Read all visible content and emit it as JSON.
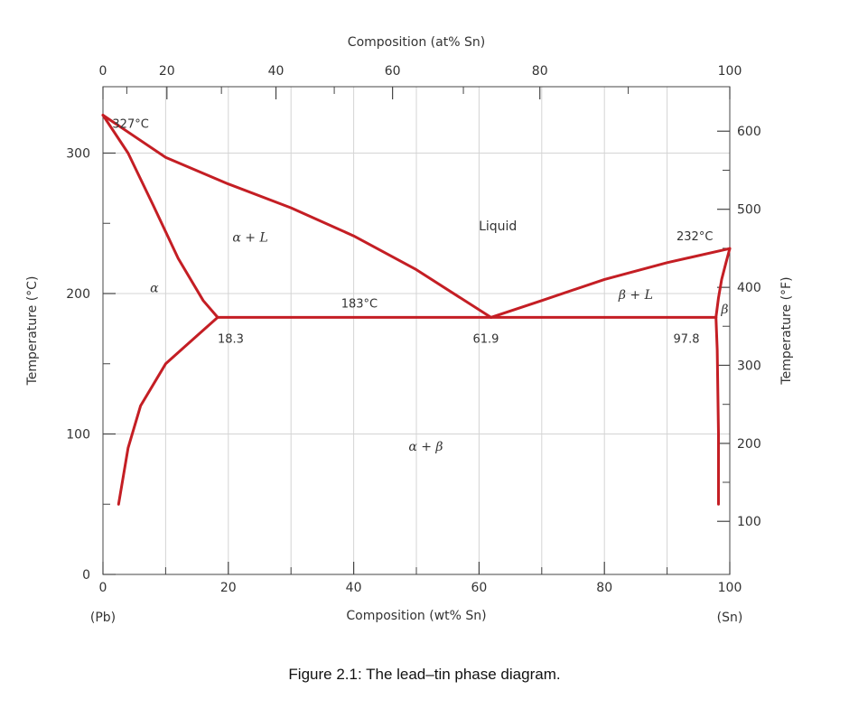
{
  "caption": "Figure 2.1: The lead–tin phase diagram.",
  "chart_data": {
    "type": "line",
    "title": "",
    "xlabel": "Composition (wt% Sn)",
    "x2label": "Composition (at% Sn)",
    "ylabel": "Temperature (°C)",
    "y2label": "Temperature (°F)",
    "xlim": [
      0,
      100
    ],
    "ylim": [
      0,
      327
    ],
    "xticks": [
      0,
      20,
      40,
      60,
      80,
      100
    ],
    "yticks": [
      0,
      100,
      200,
      300
    ],
    "x2ticks": [
      {
        "at": 0,
        "wt": 0.0
      },
      {
        "at": 20,
        "wt": 10.2
      },
      {
        "at": 40,
        "wt": 27.6
      },
      {
        "at": 60,
        "wt": 46.2
      },
      {
        "at": 80,
        "wt": 69.7
      },
      {
        "at": 100,
        "wt": 100.0
      }
    ],
    "y2ticks": [
      {
        "f": 100,
        "c": 37.8
      },
      {
        "f": 200,
        "c": 93.3
      },
      {
        "f": 300,
        "c": 148.9
      },
      {
        "f": 400,
        "c": 204.4
      },
      {
        "f": 500,
        "c": 260.0
      },
      {
        "f": 600,
        "c": 315.6
      }
    ],
    "x_end_labels": {
      "left": "(Pb)",
      "right": "(Sn)"
    },
    "grid": true,
    "series": [
      {
        "x": [
          0,
          4,
          8,
          12,
          16,
          18.3
        ],
        "y": [
          327,
          300,
          263,
          225,
          195,
          183
        ]
      },
      {
        "x": [
          0,
          10,
          20,
          30,
          40,
          50,
          61.9
        ],
        "y": [
          327,
          297,
          278,
          261,
          241,
          217,
          183
        ]
      },
      {
        "x": [
          61.9,
          70,
          80,
          90,
          100
        ],
        "y": [
          183,
          195,
          210,
          222,
          232
        ]
      },
      {
        "x": [
          100,
          99.4,
          98.7,
          98.2,
          97.8
        ],
        "y": [
          232,
          222,
          210,
          197,
          183
        ]
      },
      {
        "x": [
          18.3,
          15,
          10,
          6,
          4,
          2.5
        ],
        "y": [
          183,
          170,
          150,
          120,
          90,
          50
        ]
      },
      {
        "x": [
          97.8,
          98.0,
          98.1,
          98.2,
          98.2,
          98.2
        ],
        "y": [
          183,
          160,
          130,
          100,
          70,
          50
        ]
      },
      {
        "x": [
          18.3,
          97.8
        ],
        "y": [
          183,
          183
        ]
      }
    ],
    "series_color": "#c41e24",
    "annotations": [
      {
        "text": "327°C",
        "x": 1.5,
        "y": 318
      },
      {
        "text": "232°C",
        "x": 91.5,
        "y": 238
      },
      {
        "text": "183°C",
        "x": 38,
        "y": 190
      },
      {
        "text": "18.3",
        "x": 18.3,
        "y": 165
      },
      {
        "text": "61.9",
        "x": 59,
        "y": 165
      },
      {
        "text": "97.8",
        "x": 91,
        "y": 165
      }
    ],
    "regions": [
      {
        "text": "Liquid",
        "x": 63,
        "y": 245,
        "italic": false
      },
      {
        "text": "α + L",
        "x": 23.5,
        "y": 237,
        "italic": true
      },
      {
        "text": "α",
        "x": 8.2,
        "y": 201,
        "italic": true
      },
      {
        "text": "β + L",
        "x": 85,
        "y": 196,
        "italic": true
      },
      {
        "text": "β",
        "x": 99.2,
        "y": 186,
        "italic": true
      },
      {
        "text": "α + β",
        "x": 51.5,
        "y": 88,
        "italic": true
      }
    ]
  }
}
